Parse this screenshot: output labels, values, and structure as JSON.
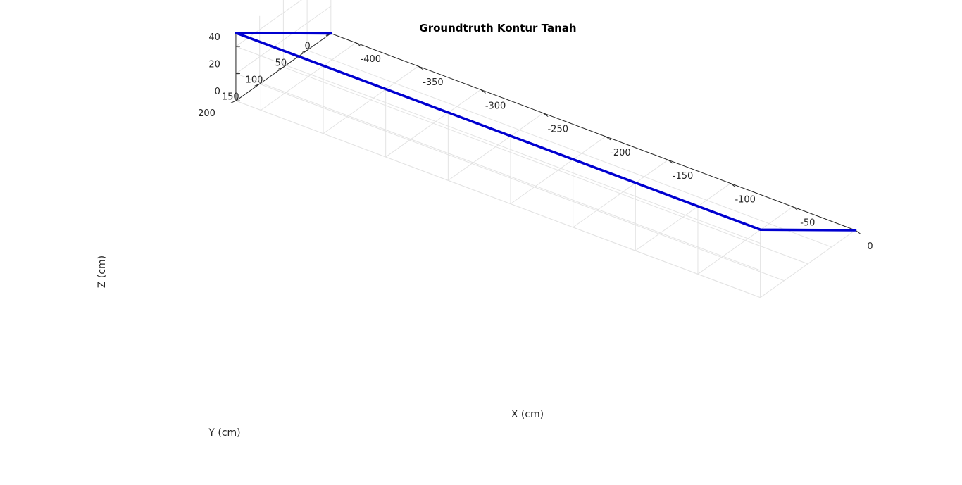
{
  "chart_data": {
    "type": "line",
    "title": "Groundtruth Kontur Tanah",
    "xlabel": "X (cm)",
    "ylabel": "Y (cm)",
    "zlabel": "Z (cm)",
    "xlim": [
      -420,
      0
    ],
    "ylim": [
      0,
      200
    ],
    "zlim": [
      0,
      50
    ],
    "xticks": [
      -400,
      -350,
      -300,
      -250,
      -200,
      -150,
      -100,
      -50,
      0
    ],
    "yticks": [
      0,
      50,
      100,
      150,
      200
    ],
    "zticks": [
      0,
      20,
      40
    ],
    "grid": true,
    "series": [
      {
        "color": "#0000d0",
        "x": [
          -420,
          -420,
          -400,
          -20,
          0,
          0
        ],
        "y": [
          0,
          200,
          200,
          200,
          200,
          0
        ],
        "z": [
          0,
          50,
          50,
          50,
          50,
          0
        ]
      }
    ]
  }
}
